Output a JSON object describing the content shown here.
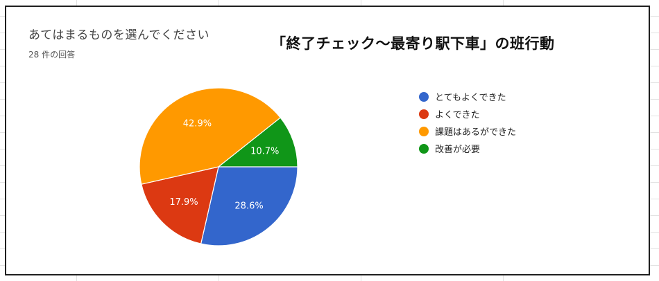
{
  "question": "あてはまるものを選んでください",
  "response_count": "28 件の回答",
  "chart_data": {
    "type": "pie",
    "title": "「終了チェック〜最寄り駅下車」の班行動",
    "categories": [
      "とてもよくできた",
      "よくできた",
      "課題はあるができた",
      "改善が必要"
    ],
    "values": [
      28.6,
      17.9,
      42.9,
      10.7
    ],
    "labels": [
      "28.6%",
      "17.9%",
      "42.9%",
      "10.7%"
    ],
    "colors": [
      "#3366cc",
      "#dc3912",
      "#ff9900",
      "#109618"
    ],
    "legend_position": "right"
  }
}
